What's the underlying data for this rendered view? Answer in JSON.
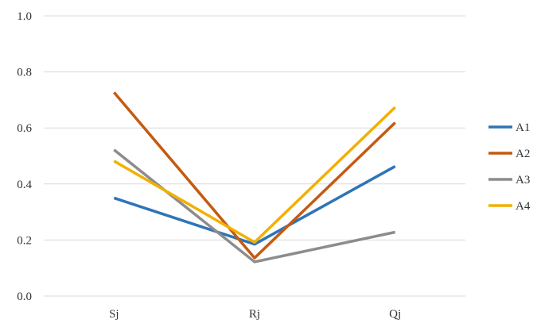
{
  "chart_data": {
    "type": "line",
    "categories": [
      "Sj",
      "Rj",
      "Qj"
    ],
    "series": [
      {
        "name": "A1",
        "color": "#2E75B6",
        "values": [
          0.35,
          0.185,
          0.463
        ]
      },
      {
        "name": "A2",
        "color": "#C55A11",
        "values": [
          0.727,
          0.136,
          0.619
        ]
      },
      {
        "name": "A3",
        "color": "#8C8C8C",
        "values": [
          0.522,
          0.122,
          0.228
        ]
      },
      {
        "name": "A4",
        "color": "#F2B000",
        "values": [
          0.482,
          0.192,
          0.674
        ]
      }
    ],
    "ylim": [
      0.0,
      1.0
    ],
    "yticks": [
      "0.0",
      "0.2",
      "0.4",
      "0.6",
      "0.8",
      "1.0"
    ],
    "grid": true,
    "legend_position": "right"
  }
}
